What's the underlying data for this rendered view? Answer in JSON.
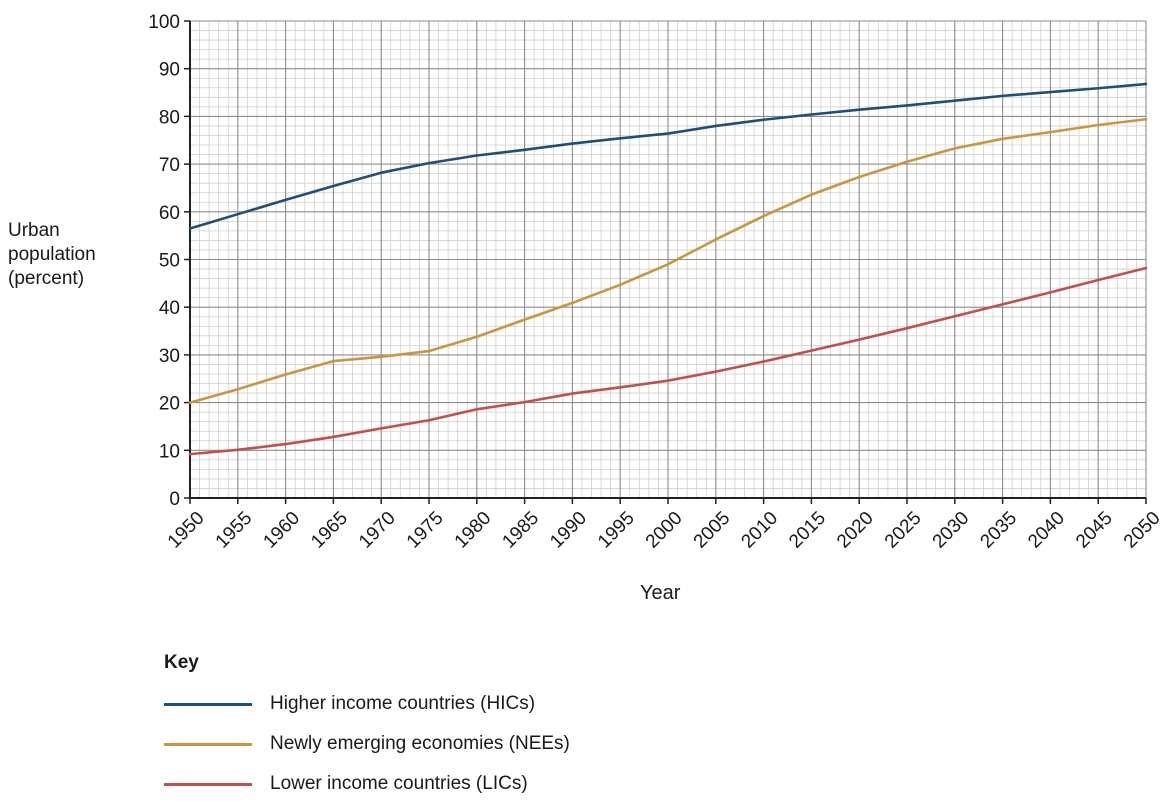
{
  "chart_data": {
    "type": "line",
    "title": "",
    "xlabel": "Year",
    "ylabel_lines": [
      "Urban",
      "population",
      "(percent)"
    ],
    "x": [
      1950,
      1955,
      1960,
      1965,
      1970,
      1975,
      1980,
      1985,
      1990,
      1995,
      2000,
      2005,
      2010,
      2015,
      2020,
      2025,
      2030,
      2035,
      2040,
      2045,
      2050
    ],
    "xlim": [
      1950,
      2050
    ],
    "ylim": [
      0,
      100
    ],
    "yticks": [
      0,
      10,
      20,
      30,
      40,
      50,
      60,
      70,
      80,
      90,
      100
    ],
    "grid": "major and minor",
    "legend_title": "Key",
    "legend_position": "bottom-left",
    "series": [
      {
        "name": "Higher income countries (HICs)",
        "color": "#1f4e79",
        "values": [
          56.5,
          59.5,
          62.5,
          65.4,
          68.2,
          70.2,
          71.8,
          73.0,
          74.3,
          75.4,
          76.4,
          78.0,
          79.3,
          80.4,
          81.4,
          82.3,
          83.3,
          84.3,
          85.1,
          85.9,
          86.8
        ]
      },
      {
        "name": "Newly emerging economies (NEEs)",
        "color": "#c8963e",
        "values": [
          20.0,
          22.8,
          25.9,
          28.7,
          29.6,
          30.8,
          33.8,
          37.4,
          40.9,
          44.7,
          49.0,
          54.2,
          59.1,
          63.6,
          67.3,
          70.5,
          73.3,
          75.3,
          76.7,
          78.2,
          79.4
        ]
      },
      {
        "name": "Lower income countries (LICs)",
        "color": "#c0504d",
        "values": [
          9.2,
          10.1,
          11.3,
          12.8,
          14.6,
          16.3,
          18.6,
          20.1,
          21.9,
          23.2,
          24.6,
          26.5,
          28.6,
          30.9,
          33.2,
          35.6,
          38.1,
          40.6,
          43.1,
          45.7,
          48.2
        ]
      }
    ]
  }
}
